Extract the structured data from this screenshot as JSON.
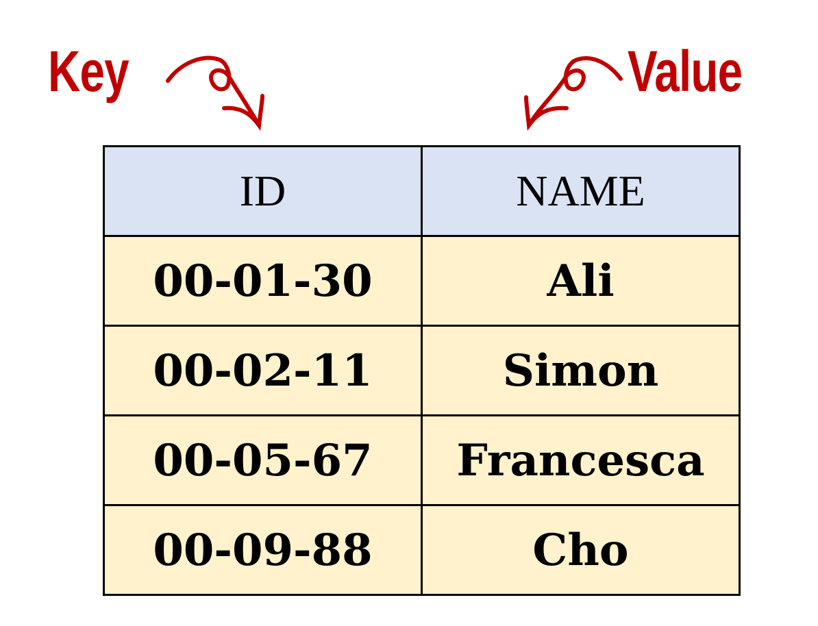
{
  "labels": {
    "key": "Key",
    "value": "Value"
  },
  "colors": {
    "annotation": "#c00000",
    "header_bg": "#dae3f3",
    "cell_bg": "#fff2cc"
  },
  "table": {
    "headers": [
      "ID",
      "NAME"
    ],
    "rows": [
      [
        "00-01-30",
        "Ali"
      ],
      [
        "00-02-11",
        "Simon"
      ],
      [
        "00-05-67",
        "Francesca"
      ],
      [
        "00-09-88",
        "Cho"
      ]
    ]
  }
}
